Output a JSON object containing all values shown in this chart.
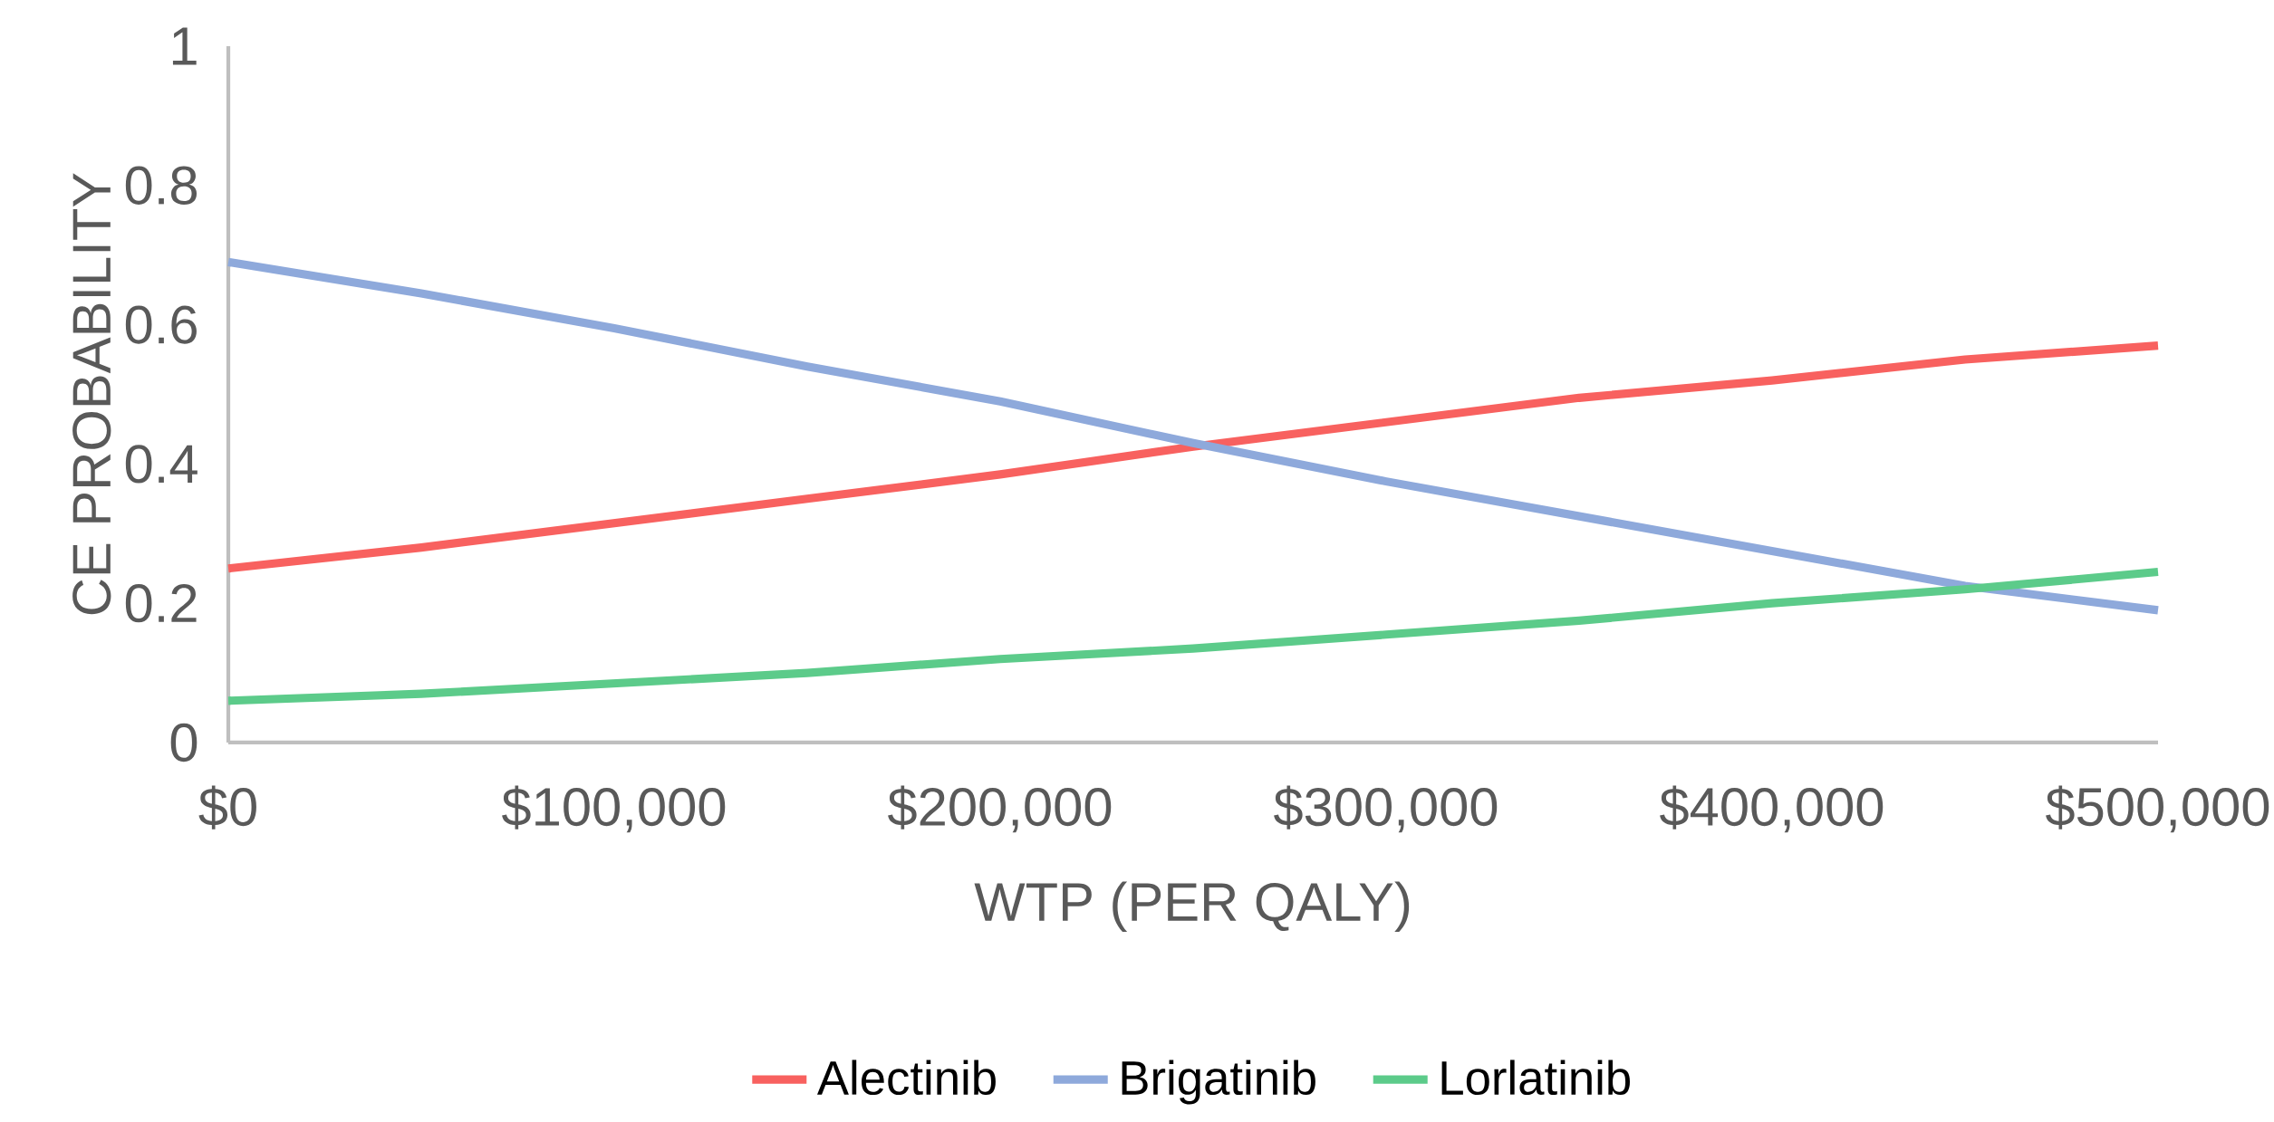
{
  "chart_data": {
    "type": "line",
    "xlabel": "WTP (PER QALY)",
    "ylabel": "CE PROBABILITY",
    "x": [
      0,
      50000,
      100000,
      150000,
      200000,
      250000,
      300000,
      350000,
      400000,
      450000,
      500000
    ],
    "series": [
      {
        "name": "Alectinib",
        "color": "#f8615f",
        "values": [
          0.25,
          0.28,
          0.315,
          0.35,
          0.385,
          0.425,
          0.46,
          0.495,
          0.52,
          0.55,
          0.57
        ]
      },
      {
        "name": "Brigatinib",
        "color": "#8ea9db",
        "values": [
          0.69,
          0.645,
          0.595,
          0.54,
          0.49,
          0.43,
          0.375,
          0.325,
          0.275,
          0.225,
          0.19
        ]
      },
      {
        "name": "Lorlatinib",
        "color": "#5ccb8a",
        "values": [
          0.06,
          0.07,
          0.085,
          0.1,
          0.12,
          0.135,
          0.155,
          0.175,
          0.2,
          0.22,
          0.245
        ]
      }
    ],
    "xlim": [
      0,
      500000
    ],
    "xticks": [
      {
        "value": 0,
        "label": "$0"
      },
      {
        "value": 100000,
        "label": "$100,000"
      },
      {
        "value": 200000,
        "label": "$200,000"
      },
      {
        "value": 300000,
        "label": "$300,000"
      },
      {
        "value": 400000,
        "label": "$400,000"
      },
      {
        "value": 500000,
        "label": "$500,000"
      }
    ],
    "ylim": [
      0,
      1
    ],
    "yticks": [
      0,
      0.2,
      0.4,
      0.6,
      0.8,
      1
    ],
    "grid": false,
    "legend": "bottom",
    "marker": "none",
    "line_style": "solid"
  }
}
